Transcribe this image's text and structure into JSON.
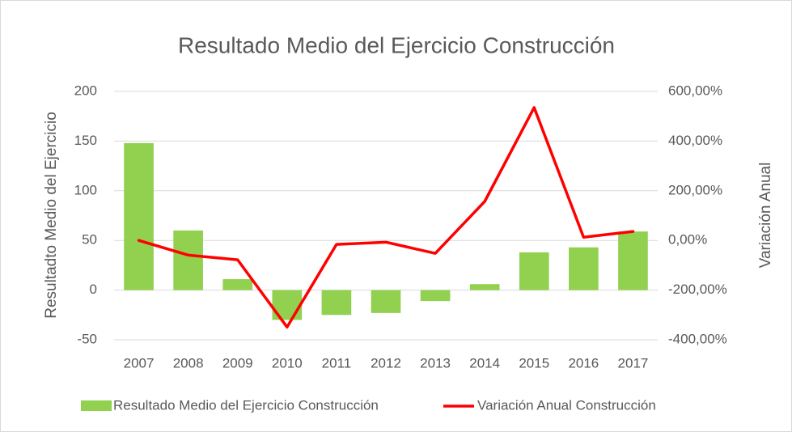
{
  "chart_data": {
    "type": "bar-line",
    "title": "Resultado Medio del Ejercicio Construcción",
    "y_label": "Resultadto Medio del Ejercicio",
    "y2_label": "Variación Anual",
    "categories": [
      "2007",
      "2008",
      "2009",
      "2010",
      "2011",
      "2012",
      "2013",
      "2014",
      "2015",
      "2016",
      "2017"
    ],
    "series": [
      {
        "name": "Resultado Medio del Ejercicio  Construcción",
        "type": "bar",
        "color": "#92d050",
        "axis": "y",
        "values": [
          148,
          60,
          11,
          -30,
          -25,
          -23,
          -11,
          6,
          38,
          43,
          59
        ]
      },
      {
        "name": "Variación Anual Construcción",
        "type": "line",
        "color": "#ff0000",
        "axis": "y2",
        "values": [
          0,
          -59,
          -78,
          -349,
          -16,
          -7,
          -52,
          157,
          535,
          13,
          36
        ]
      }
    ],
    "ylim": [
      -50,
      200
    ],
    "yticks": [
      -50,
      0,
      50,
      100,
      150,
      200
    ],
    "y2lim": [
      -400,
      600
    ],
    "y2ticks": [
      {
        "value": -400,
        "label": "-400,00%"
      },
      {
        "value": -200,
        "label": "-200,00%"
      },
      {
        "value": 0,
        "label": "0,00%"
      },
      {
        "value": 200,
        "label": "200,00%"
      },
      {
        "value": 400,
        "label": "400,00%"
      },
      {
        "value": 600,
        "label": "600,00%"
      }
    ],
    "grid": true,
    "legend": "bottom"
  }
}
